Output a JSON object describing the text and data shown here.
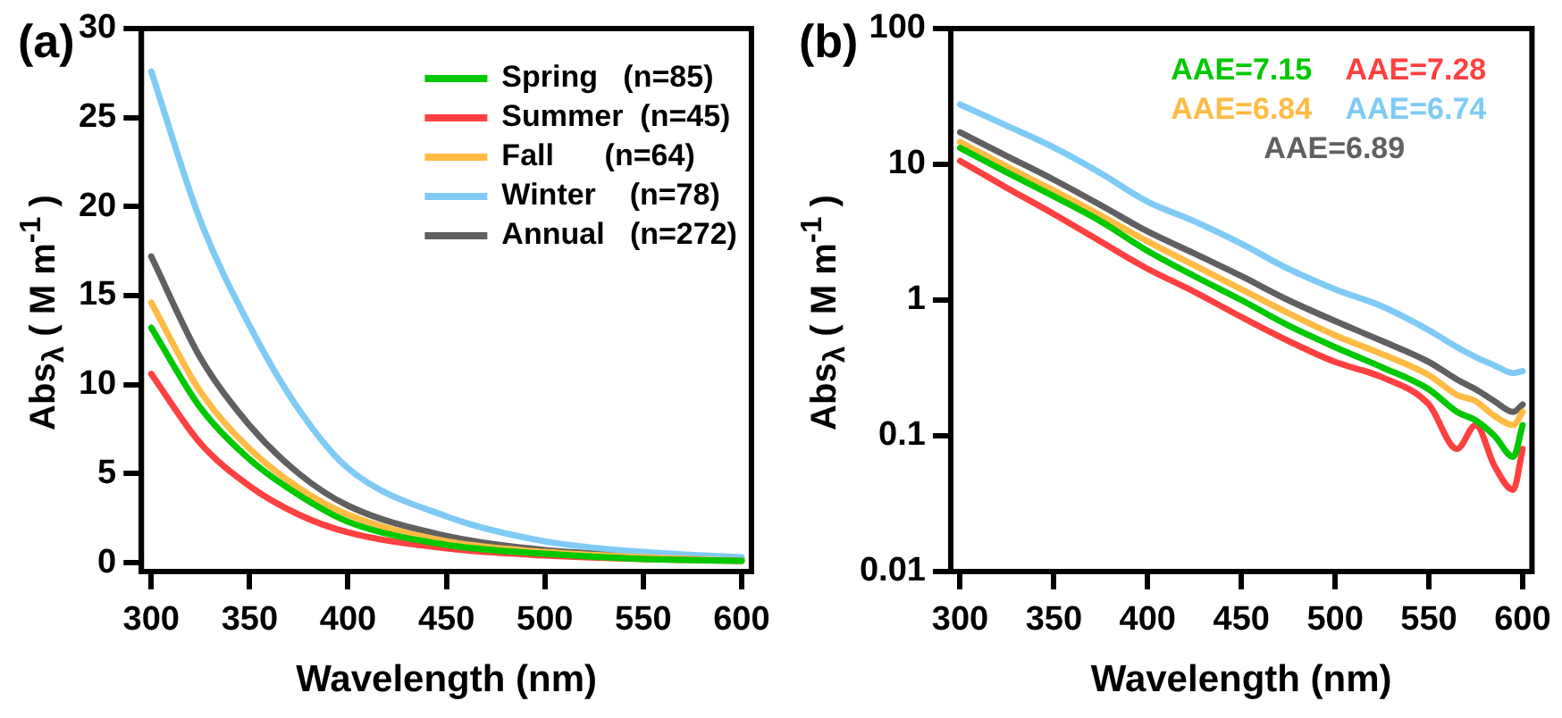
{
  "chart_data": [
    {
      "type": "line",
      "title": "(a)",
      "xlabel": "Wavelength (nm)",
      "ylabel": "Abs$_{λ}$ ( M m$^{-1}$ )",
      "xlim": [
        295,
        605
      ],
      "xticks": [
        300,
        350,
        400,
        450,
        500,
        550,
        600
      ],
      "ylim": [
        -0.5,
        30
      ],
      "yticks": [
        0,
        5,
        10,
        15,
        20,
        25,
        30
      ],
      "grid": false,
      "legend": "top right",
      "marker": "none",
      "line_style": "solid",
      "x": [
        300,
        325,
        350,
        375,
        400,
        450,
        500,
        550,
        600
      ],
      "series": [
        {
          "name": "Spring   (n=85)",
          "color": "#00c800",
          "values": [
            13.2,
            8.7,
            5.8,
            3.8,
            2.3,
            1.0,
            0.5,
            0.2,
            0.1
          ]
        },
        {
          "name": "Summer  (n=45)",
          "color": "#ff4040",
          "values": [
            10.6,
            6.7,
            4.3,
            2.7,
            1.7,
            0.8,
            0.4,
            0.2,
            0.1
          ]
        },
        {
          "name": "Fall      (n=64)",
          "color": "#ffbb44",
          "values": [
            14.6,
            9.6,
            6.4,
            4.2,
            2.7,
            1.2,
            0.6,
            0.3,
            0.1
          ]
        },
        {
          "name": "Winter    (n=78)",
          "color": "#7fcbf5",
          "values": [
            27.6,
            19.2,
            13.3,
            8.6,
            5.3,
            2.6,
            1.2,
            0.6,
            0.3
          ]
        },
        {
          "name": "Annual   (n=272)",
          "color": "#606060",
          "values": [
            17.2,
            11.5,
            7.7,
            5.0,
            3.2,
            1.5,
            0.7,
            0.4,
            0.2
          ]
        }
      ]
    },
    {
      "type": "line",
      "title": "(b)",
      "xlabel": "Wavelength (nm)",
      "ylabel": "Abs$_{λ}$ ( M m$^{-1}$ )",
      "xticks": [
        300,
        350,
        400,
        450,
        500,
        550,
        600
      ],
      "xlim": [
        295,
        605
      ],
      "ylim": [
        0.01,
        100
      ],
      "yticks": [
        0.01,
        0.1,
        1,
        10,
        100
      ],
      "log": "y",
      "grid": false,
      "marker": "none",
      "line_style": "solid",
      "annotations": [
        "AAE=7.15",
        "AAE=7.28",
        "AAE=6.84",
        "AAE=6.74",
        "AAE=6.89"
      ],
      "x": [
        300,
        325,
        350,
        375,
        400,
        425,
        450,
        475,
        500,
        525,
        550,
        565,
        575,
        585,
        595,
        600
      ],
      "series": [
        {
          "color": "#00c800",
          "values": [
            13.2,
            8.7,
            5.8,
            3.8,
            2.3,
            1.5,
            1.0,
            0.65,
            0.45,
            0.32,
            0.22,
            0.15,
            0.13,
            0.1,
            0.07,
            0.12
          ]
        },
        {
          "color": "#ff4040",
          "values": [
            10.6,
            6.7,
            4.3,
            2.7,
            1.7,
            1.15,
            0.75,
            0.5,
            0.35,
            0.27,
            0.17,
            0.08,
            0.12,
            0.06,
            0.04,
            0.08
          ]
        },
        {
          "color": "#ffbb44",
          "values": [
            14.6,
            9.6,
            6.4,
            4.2,
            2.7,
            1.8,
            1.2,
            0.8,
            0.55,
            0.4,
            0.28,
            0.2,
            0.18,
            0.14,
            0.12,
            0.15
          ]
        },
        {
          "color": "#7fcbf5",
          "values": [
            27.6,
            19.2,
            13.3,
            8.6,
            5.3,
            3.8,
            2.6,
            1.7,
            1.2,
            0.9,
            0.6,
            0.45,
            0.38,
            0.33,
            0.29,
            0.3
          ]
        },
        {
          "color": "#606060",
          "values": [
            17.2,
            11.5,
            7.7,
            5.0,
            3.2,
            2.2,
            1.5,
            1.0,
            0.7,
            0.5,
            0.35,
            0.26,
            0.22,
            0.18,
            0.15,
            0.17
          ]
        }
      ]
    }
  ]
}
